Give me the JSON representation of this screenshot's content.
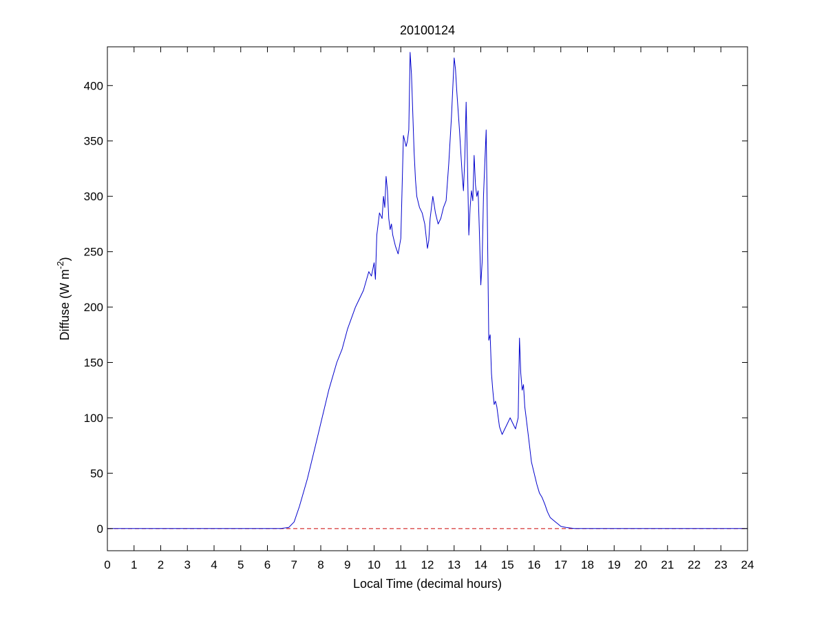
{
  "chart_data": {
    "type": "line",
    "title": "20100124",
    "xlabel": "Local Time (decimal hours)",
    "ylabel": {
      "prefix": "Diffuse (W m",
      "sup": "-2",
      "suffix": ")"
    },
    "xlim": [
      0,
      24
    ],
    "ylim": [
      -20,
      435
    ],
    "xticks": [
      0,
      1,
      2,
      3,
      4,
      5,
      6,
      7,
      8,
      9,
      10,
      11,
      12,
      13,
      14,
      15,
      16,
      17,
      18,
      19,
      20,
      21,
      22,
      23,
      24
    ],
    "yticks": [
      0,
      50,
      100,
      150,
      200,
      250,
      300,
      350,
      400
    ],
    "grid": false,
    "line_color": "#0000cc",
    "reference_line": {
      "y": 0,
      "color": "#cc0000",
      "style": "dashed"
    },
    "series": [
      {
        "x": [
          0,
          6.5,
          6.8,
          7.0,
          7.2,
          7.5,
          7.8,
          8.0,
          8.3,
          8.6,
          8.8,
          9.0,
          9.3,
          9.6,
          9.8,
          9.9,
          10.0,
          10.05,
          10.1,
          10.2,
          10.3,
          10.35,
          10.4,
          10.45,
          10.5,
          10.55,
          10.6,
          10.65,
          10.7,
          10.8,
          10.9,
          11.0,
          11.1,
          11.2,
          11.25,
          11.3,
          11.35,
          11.4,
          11.45,
          11.5,
          11.55,
          11.6,
          11.7,
          11.8,
          11.9,
          12.0,
          12.05,
          12.1,
          12.2,
          12.3,
          12.4,
          12.5,
          12.6,
          12.7,
          12.8,
          12.9,
          13.0,
          13.05,
          13.1,
          13.2,
          13.3,
          13.35,
          13.4,
          13.45,
          13.5,
          13.55,
          13.6,
          13.65,
          13.7,
          13.75,
          13.8,
          13.85,
          13.9,
          13.95,
          14.0,
          14.05,
          14.1,
          14.15,
          14.2,
          14.25,
          14.3,
          14.35,
          14.4,
          14.45,
          14.5,
          14.55,
          14.6,
          14.7,
          14.8,
          14.9,
          15.0,
          15.1,
          15.2,
          15.3,
          15.4,
          15.45,
          15.5,
          15.55,
          15.6,
          15.65,
          15.7,
          15.8,
          15.9,
          16.0,
          16.1,
          16.2,
          16.3,
          16.4,
          16.5,
          16.6,
          16.7,
          16.8,
          16.9,
          17.0,
          17.2,
          17.5,
          18.0,
          24
        ],
        "y": [
          0,
          0,
          1,
          6,
          20,
          45,
          75,
          95,
          125,
          150,
          162,
          180,
          200,
          215,
          232,
          228,
          240,
          225,
          265,
          285,
          280,
          300,
          290,
          318,
          305,
          280,
          270,
          275,
          265,
          255,
          248,
          262,
          355,
          345,
          350,
          360,
          430,
          410,
          375,
          340,
          315,
          300,
          290,
          285,
          275,
          253,
          260,
          280,
          300,
          285,
          275,
          280,
          290,
          296,
          330,
          372,
          425,
          415,
          395,
          360,
          320,
          305,
          335,
          385,
          330,
          265,
          290,
          305,
          296,
          337,
          310,
          300,
          305,
          265,
          220,
          240,
          300,
          330,
          360,
          270,
          170,
          175,
          140,
          125,
          112,
          115,
          110,
          92,
          85,
          90,
          95,
          100,
          95,
          90,
          100,
          172,
          140,
          125,
          130,
          110,
          100,
          80,
          60,
          50,
          40,
          32,
          28,
          22,
          15,
          10,
          8,
          6,
          4,
          2,
          1,
          0,
          0,
          0
        ]
      }
    ]
  }
}
